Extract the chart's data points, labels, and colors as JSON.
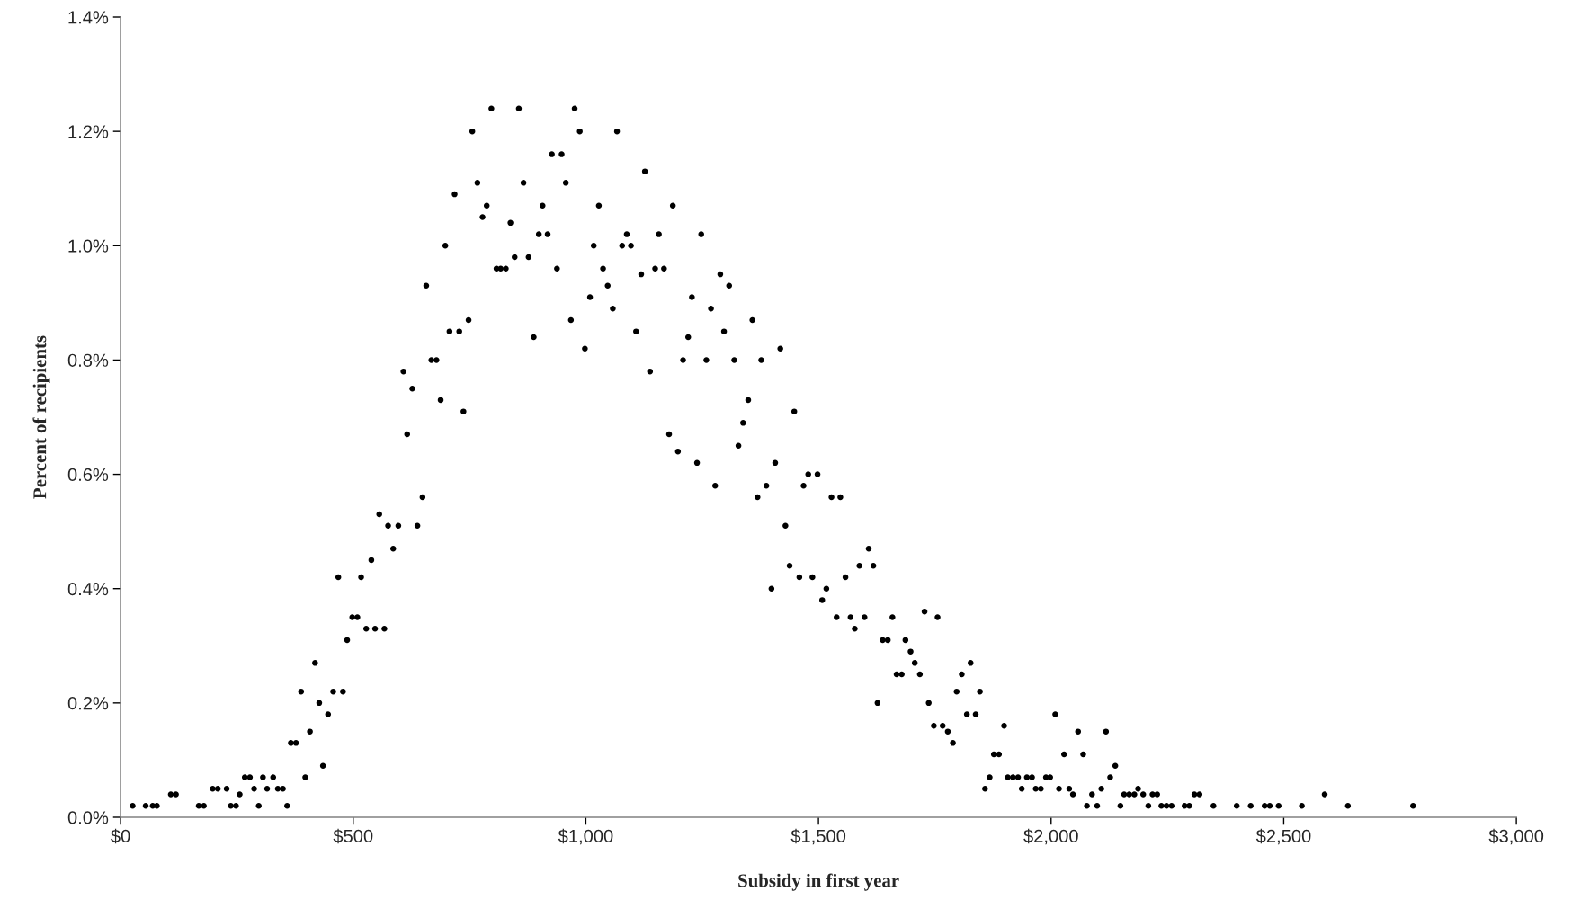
{
  "chart_data": {
    "type": "scatter",
    "xlabel": "Subsidy in first year",
    "ylabel": "Percent of recipients",
    "color": "#000000",
    "marker": "circle",
    "grid": false,
    "xlim": [
      0,
      3000
    ],
    "ylim": [
      0,
      1.4
    ],
    "xticks": [
      {
        "value": 0,
        "label": "$0"
      },
      {
        "value": 500,
        "label": "$500"
      },
      {
        "value": 1000,
        "label": "$1,000"
      },
      {
        "value": 1500,
        "label": "$1,500"
      },
      {
        "value": 2000,
        "label": "$2,000"
      },
      {
        "value": 2500,
        "label": "$2,500"
      },
      {
        "value": 3000,
        "label": "$3,000"
      }
    ],
    "yticks": [
      {
        "value": 0,
        "label": "0.0%"
      },
      {
        "value": 0.2,
        "label": "0.2%"
      },
      {
        "value": 0.4,
        "label": "0.4%"
      },
      {
        "value": 0.6,
        "label": "0.6%"
      },
      {
        "value": 0.8,
        "label": "0.8%"
      },
      {
        "value": 1.0,
        "label": "1.0%"
      },
      {
        "value": 1.2,
        "label": "1.2%"
      },
      {
        "value": 1.4,
        "label": "1.4%"
      }
    ],
    "x": [
      26,
      54,
      69,
      78,
      108,
      119,
      168,
      179,
      198,
      209,
      228,
      237,
      248,
      256,
      267,
      278,
      287,
      297,
      306,
      315,
      328,
      338,
      349,
      358,
      366,
      377,
      388,
      397,
      407,
      418,
      427,
      435,
      446,
      457,
      468,
      478,
      487,
      498,
      509,
      517,
      528,
      539,
      547,
      556,
      567,
      575,
      586,
      597,
      608,
      616,
      627,
      638,
      649,
      657,
      668,
      679,
      688,
      698,
      707,
      718,
      728,
      737,
      748,
      756,
      767,
      778,
      787,
      797,
      808,
      817,
      828,
      838,
      847,
      856,
      866,
      877,
      888,
      899,
      907,
      918,
      927,
      938,
      948,
      957,
      968,
      976,
      987,
      998,
      1009,
      1017,
      1028,
      1037,
      1047,
      1058,
      1067,
      1078,
      1088,
      1097,
      1108,
      1119,
      1127,
      1138,
      1149,
      1157,
      1168,
      1179,
      1187,
      1198,
      1209,
      1220,
      1228,
      1239,
      1248,
      1259,
      1269,
      1278,
      1289,
      1297,
      1308,
      1319,
      1328,
      1338,
      1349,
      1358,
      1369,
      1377,
      1388,
      1399,
      1407,
      1418,
      1429,
      1438,
      1448,
      1459,
      1468,
      1478,
      1487,
      1498,
      1508,
      1517,
      1528,
      1539,
      1547,
      1558,
      1569,
      1578,
      1588,
      1599,
      1608,
      1618,
      1627,
      1638,
      1649,
      1659,
      1668,
      1679,
      1687,
      1698,
      1707,
      1718,
      1728,
      1737,
      1748,
      1756,
      1767,
      1778,
      1789,
      1797,
      1808,
      1819,
      1827,
      1838,
      1847,
      1858,
      1868,
      1877,
      1888,
      1899,
      1907,
      1918,
      1929,
      1937,
      1948,
      1959,
      1967,
      1978,
      1989,
      1998,
      2009,
      2017,
      2028,
      2039,
      2047,
      2058,
      2069,
      2077,
      2088,
      2099,
      2108,
      2118,
      2127,
      2138,
      2149,
      2157,
      2168,
      2179,
      2187,
      2198,
      2209,
      2218,
      2228,
      2237,
      2248,
      2259,
      2287,
      2297,
      2308,
      2319,
      2349,
      2399,
      2429,
      2459,
      2470,
      2489,
      2539,
      2588,
      2638,
      2778
    ],
    "values": [
      0.02,
      0.02,
      0.02,
      0.02,
      0.04,
      0.04,
      0.02,
      0.02,
      0.05,
      0.05,
      0.05,
      0.02,
      0.02,
      0.04,
      0.07,
      0.07,
      0.05,
      0.02,
      0.07,
      0.05,
      0.07,
      0.05,
      0.05,
      0.02,
      0.13,
      0.13,
      0.22,
      0.07,
      0.15,
      0.27,
      0.2,
      0.09,
      0.18,
      0.22,
      0.42,
      0.22,
      0.31,
      0.35,
      0.35,
      0.42,
      0.33,
      0.45,
      0.33,
      0.53,
      0.33,
      0.51,
      0.47,
      0.51,
      0.78,
      0.67,
      0.75,
      0.51,
      0.56,
      0.93,
      0.8,
      0.8,
      0.73,
      1.0,
      0.85,
      1.09,
      0.85,
      0.71,
      0.87,
      1.2,
      1.11,
      1.05,
      1.07,
      1.24,
      0.96,
      0.96,
      0.96,
      1.04,
      0.98,
      1.24,
      1.11,
      0.98,
      0.84,
      1.02,
      1.07,
      1.02,
      1.16,
      0.96,
      1.16,
      1.11,
      0.87,
      1.24,
      1.2,
      0.82,
      0.91,
      1.0,
      1.07,
      0.96,
      0.93,
      0.89,
      1.2,
      1.0,
      1.02,
      1.0,
      0.85,
      0.95,
      1.13,
      0.78,
      0.96,
      1.02,
      0.96,
      0.67,
      1.07,
      0.64,
      0.8,
      0.84,
      0.91,
      0.62,
      1.02,
      0.8,
      0.89,
      0.58,
      0.95,
      0.85,
      0.93,
      0.8,
      0.65,
      0.69,
      0.73,
      0.87,
      0.56,
      0.8,
      0.58,
      0.4,
      0.62,
      0.82,
      0.51,
      0.44,
      0.71,
      0.42,
      0.58,
      0.6,
      0.42,
      0.6,
      0.38,
      0.4,
      0.56,
      0.35,
      0.56,
      0.42,
      0.35,
      0.33,
      0.44,
      0.35,
      0.47,
      0.44,
      0.2,
      0.31,
      0.31,
      0.35,
      0.25,
      0.25,
      0.31,
      0.29,
      0.27,
      0.25,
      0.36,
      0.2,
      0.16,
      0.35,
      0.16,
      0.15,
      0.13,
      0.22,
      0.25,
      0.18,
      0.27,
      0.18,
      0.22,
      0.05,
      0.07,
      0.11,
      0.11,
      0.16,
      0.07,
      0.07,
      0.07,
      0.05,
      0.07,
      0.07,
      0.05,
      0.05,
      0.07,
      0.07,
      0.18,
      0.05,
      0.11,
      0.05,
      0.04,
      0.15,
      0.11,
      0.02,
      0.04,
      0.02,
      0.05,
      0.15,
      0.07,
      0.09,
      0.02,
      0.04,
      0.04,
      0.04,
      0.05,
      0.04,
      0.02,
      0.04,
      0.04,
      0.02,
      0.02,
      0.02,
      0.02,
      0.02,
      0.04,
      0.04,
      0.02,
      0.02,
      0.02,
      0.02,
      0.02,
      0.02,
      0.02,
      0.04,
      0.02,
      0.02
    ]
  }
}
